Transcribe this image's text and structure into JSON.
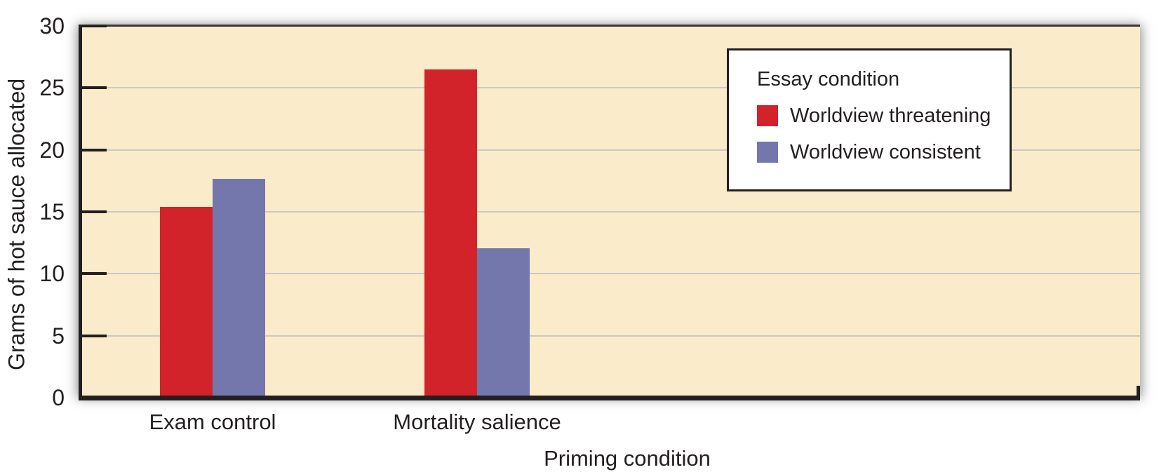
{
  "chart_data": {
    "type": "bar",
    "title": "",
    "categories": [
      "Exam control",
      "Mortality salience"
    ],
    "series": [
      {
        "name": "Worldview threatening",
        "color": "#d2232a",
        "values": [
          15.2,
          26.3
        ]
      },
      {
        "name": "Worldview consistent",
        "color": "#7477ab",
        "values": [
          17.5,
          11.9
        ]
      }
    ],
    "xlabel": "Priming condition",
    "ylabel": "Grams of hot sauce allocated",
    "ylim": [
      0,
      30
    ],
    "yticks": [
      0,
      5,
      10,
      15,
      20,
      25,
      30
    ],
    "grid": "horizontal",
    "legend": {
      "title": "Essay condition",
      "position": "top-right"
    },
    "style": {
      "plot_bg": "#faeccb",
      "gridline_color": "#cbc8c2",
      "axis_color": "#231f20",
      "text_color": "#231f20",
      "legend_bg": "#ffffff",
      "legend_border": "#231f20"
    }
  }
}
